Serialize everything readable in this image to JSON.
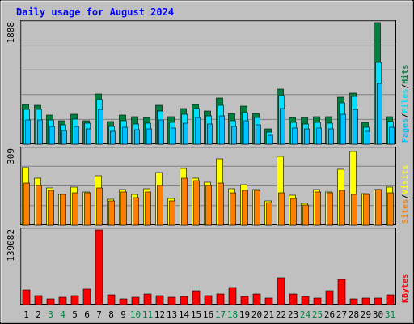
{
  "title": "Daily usage for August 2024",
  "colors": {
    "background": "#c0c0c0",
    "plot_bg": "#c0c0c0",
    "title": "#0000ff",
    "hits": "#008040",
    "files": "#00e0ff",
    "pages": "#00c0ff",
    "sites": "#ff8000",
    "visits": "#ffff00",
    "kbytes": "#ff0000",
    "weekday_label": "#000000",
    "weekend_label": "#008040"
  },
  "chart_data": [
    {
      "type": "bar",
      "panel": "hits-files-pages",
      "max_label": "1888",
      "ylim": [
        0,
        1888
      ],
      "legend": [
        "Pages",
        "Files",
        "Hits"
      ],
      "legend_separator": "/",
      "categories": [
        "1",
        "2",
        "3",
        "4",
        "5",
        "6",
        "7",
        "8",
        "9",
        "10",
        "11",
        "12",
        "13",
        "14",
        "15",
        "16",
        "17",
        "18",
        "19",
        "20",
        "21",
        "22",
        "23",
        "24",
        "25",
        "26",
        "27",
        "28",
        "29",
        "30",
        "31"
      ],
      "series": [
        {
          "name": "Hits",
          "values": [
            620,
            600,
            450,
            370,
            470,
            370,
            780,
            350,
            450,
            430,
            420,
            600,
            430,
            550,
            620,
            510,
            720,
            480,
            590,
            480,
            240,
            850,
            420,
            420,
            430,
            430,
            730,
            790,
            340,
            1888,
            430
          ]
        },
        {
          "name": "Files",
          "values": [
            540,
            540,
            380,
            300,
            390,
            330,
            690,
            280,
            370,
            320,
            330,
            520,
            340,
            460,
            560,
            440,
            610,
            370,
            490,
            410,
            190,
            760,
            340,
            320,
            340,
            330,
            640,
            740,
            270,
            1270,
            350
          ]
        },
        {
          "name": "Pages",
          "values": [
            380,
            380,
            280,
            210,
            280,
            240,
            540,
            200,
            260,
            230,
            240,
            380,
            250,
            330,
            410,
            310,
            440,
            280,
            370,
            300,
            140,
            560,
            250,
            240,
            250,
            240,
            470,
            540,
            200,
            940,
            260
          ]
        }
      ]
    },
    {
      "type": "bar",
      "panel": "sites-visits",
      "max_label": "309",
      "ylim": [
        0,
        309
      ],
      "legend": [
        "Sites",
        "Visits"
      ],
      "legend_separator": "/",
      "categories": [
        "1",
        "2",
        "3",
        "4",
        "5",
        "6",
        "7",
        "8",
        "9",
        "10",
        "11",
        "12",
        "13",
        "14",
        "15",
        "16",
        "17",
        "18",
        "19",
        "20",
        "21",
        "22",
        "23",
        "24",
        "25",
        "26",
        "27",
        "28",
        "29",
        "30",
        "31"
      ],
      "series": [
        {
          "name": "Visits",
          "values": [
            235,
            190,
            150,
            125,
            155,
            135,
            200,
            105,
            145,
            125,
            148,
            215,
            110,
            230,
            190,
            175,
            270,
            148,
            165,
            143,
            97,
            280,
            122,
            88,
            145,
            135,
            228,
            300,
            127,
            145,
            155
          ]
        },
        {
          "name": "Sites",
          "values": [
            170,
            160,
            140,
            125,
            130,
            130,
            150,
            100,
            135,
            112,
            135,
            162,
            100,
            190,
            182,
            162,
            170,
            130,
            140,
            140,
            92,
            130,
            110,
            83,
            135,
            130,
            140,
            125,
            125,
            143,
            130
          ]
        }
      ]
    },
    {
      "type": "bar",
      "panel": "kbytes",
      "max_label": "139082",
      "ylim": [
        0,
        139082
      ],
      "legend": [
        "KBytes"
      ],
      "categories": [
        "1",
        "2",
        "3",
        "4",
        "5",
        "6",
        "7",
        "8",
        "9",
        "10",
        "11",
        "12",
        "13",
        "14",
        "15",
        "16",
        "17",
        "18",
        "19",
        "20",
        "21",
        "22",
        "23",
        "24",
        "25",
        "26",
        "27",
        "28",
        "29",
        "30",
        "31"
      ],
      "series": [
        {
          "name": "KBytes",
          "values": [
            27000,
            17000,
            11000,
            14000,
            16000,
            29000,
            139082,
            18000,
            11000,
            13000,
            19000,
            17000,
            14000,
            15000,
            26000,
            16000,
            20000,
            32000,
            15000,
            20000,
            12000,
            50000,
            19000,
            15000,
            12000,
            26000,
            47000,
            11000,
            12000,
            12000,
            18000
          ]
        }
      ]
    }
  ]
}
